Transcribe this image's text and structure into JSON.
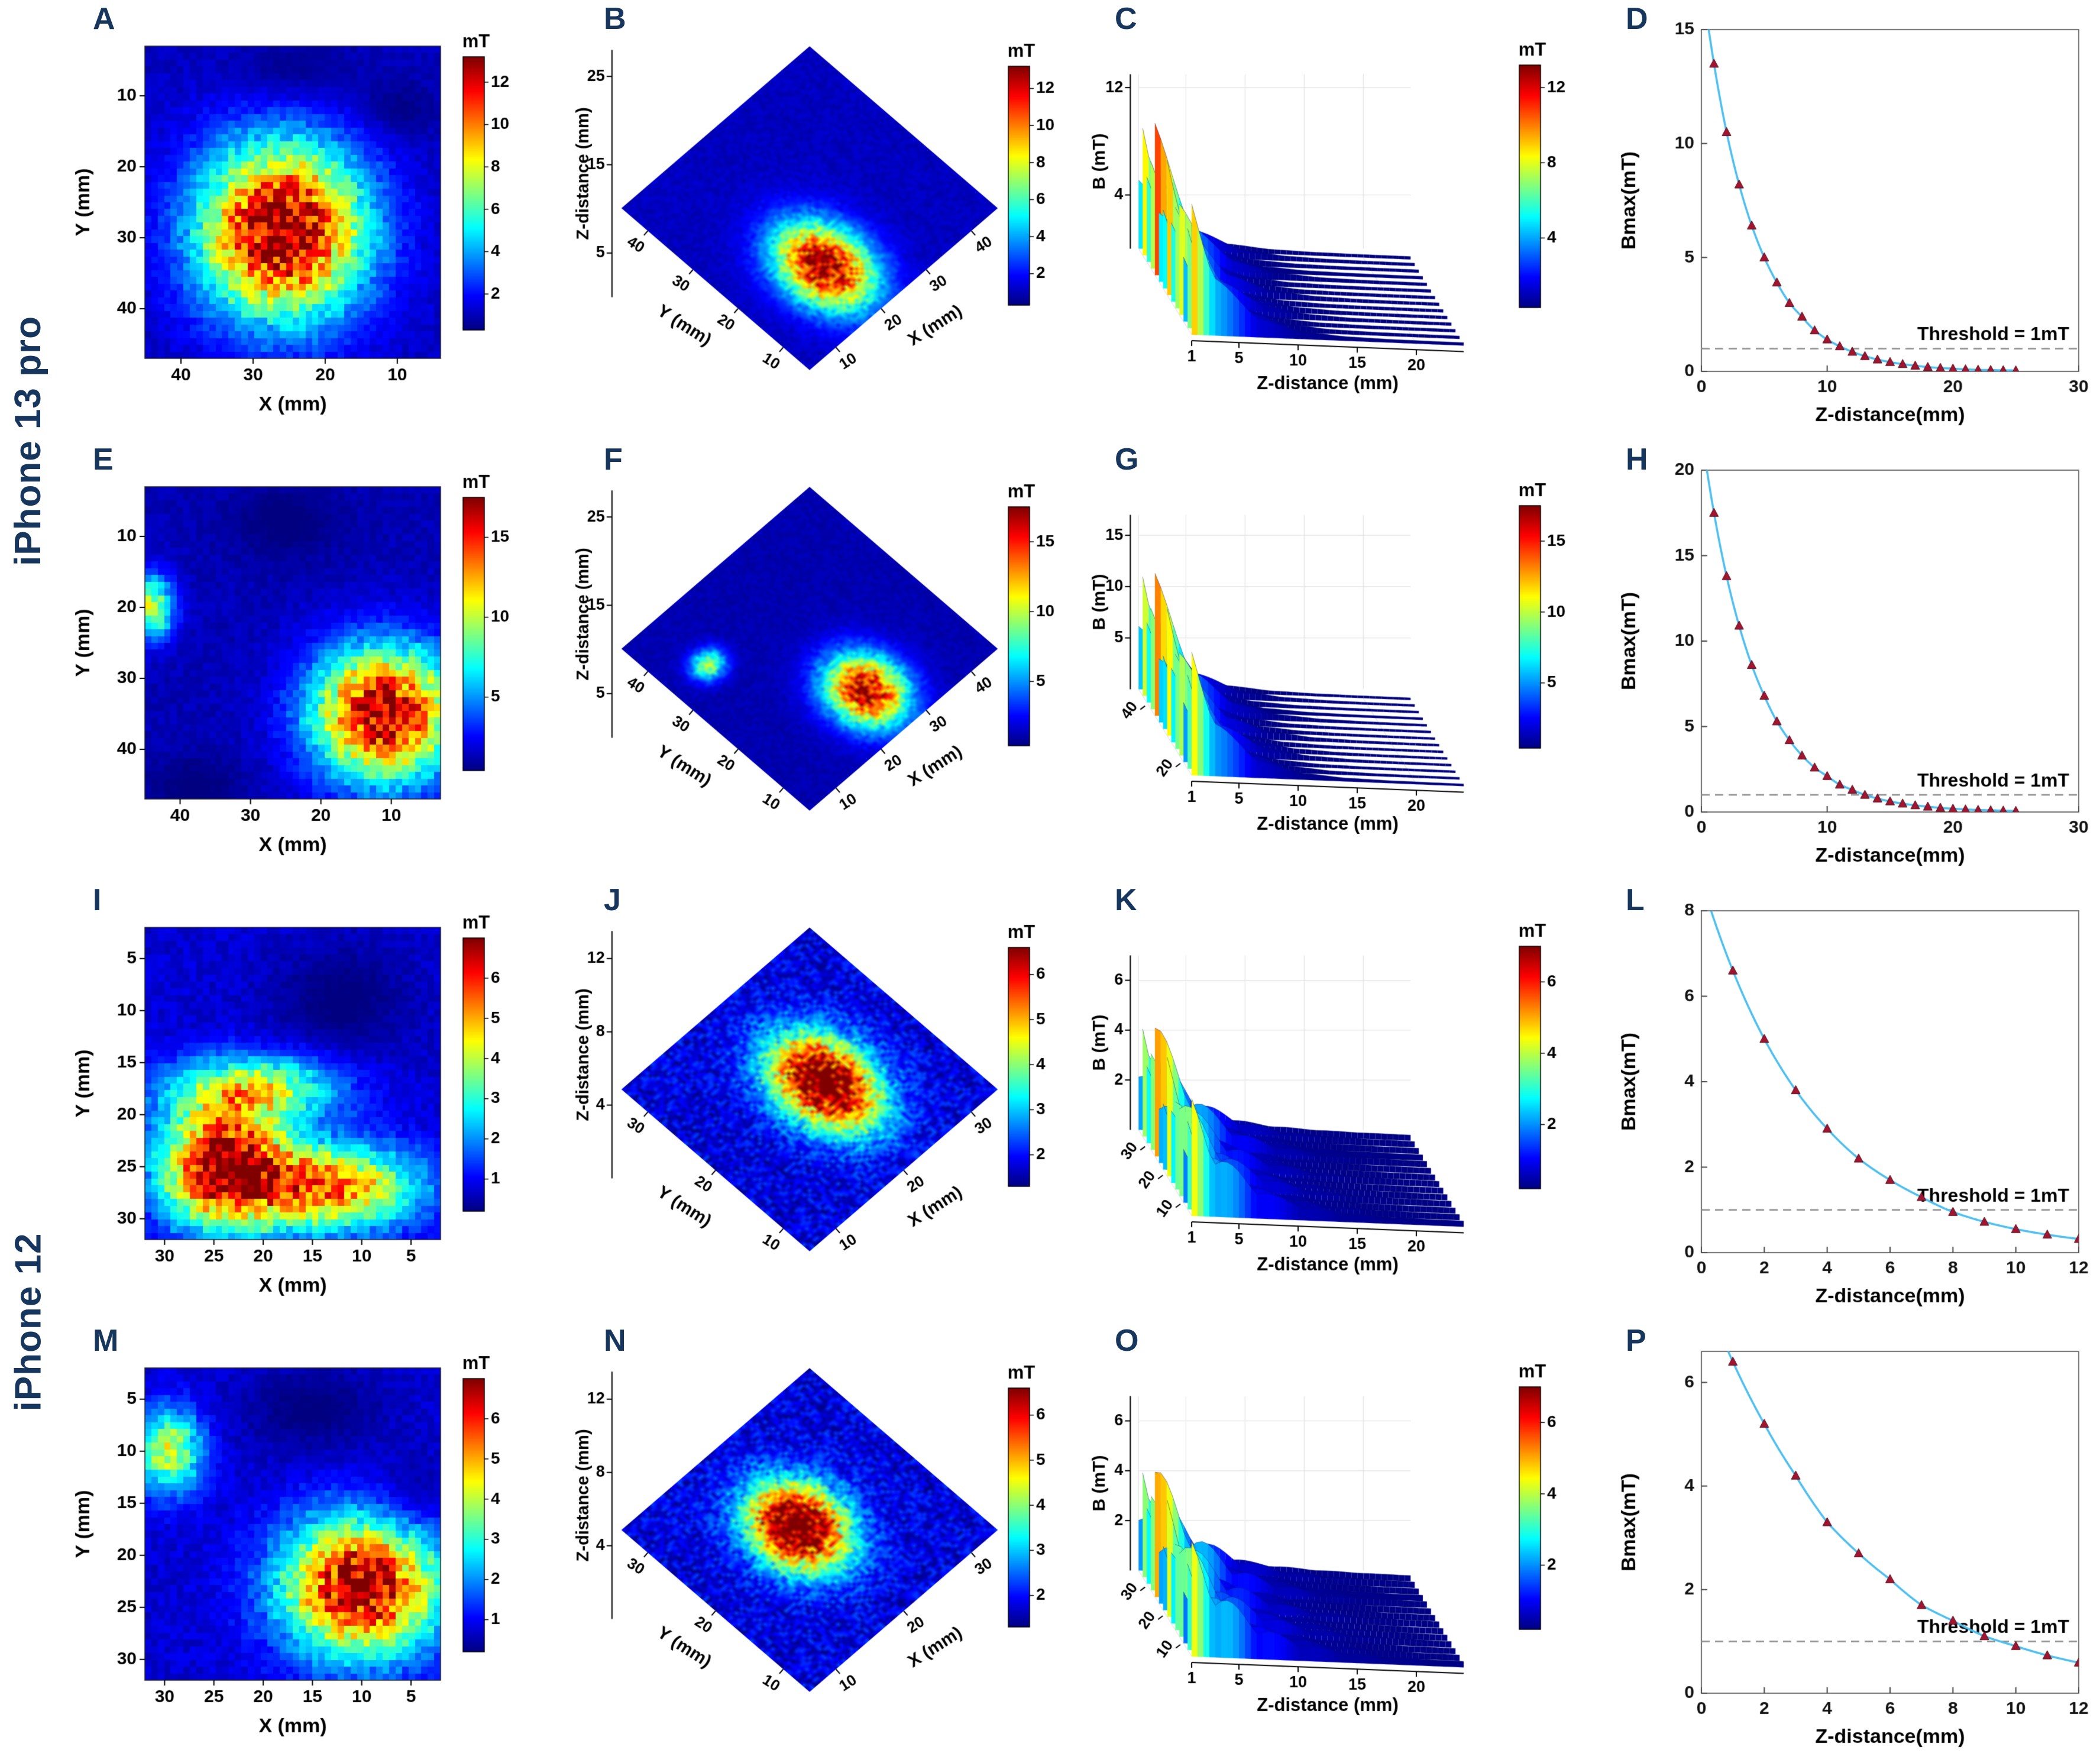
{
  "figure": {
    "groups": [
      {
        "label": "iPhone 13 pro"
      },
      {
        "label": "iPhone 12"
      }
    ]
  },
  "colors": {
    "panel_letter": "#17365d",
    "side_label": "#17365d",
    "line": "#4dbeee",
    "marker": "#a2142f",
    "marker_edge": "#4a0a14",
    "threshold": "#8c8c8c",
    "text": "#000000"
  },
  "chart_data": [
    {
      "panel": "A",
      "group": "iPhone 13 pro",
      "type": "heatmap",
      "xlabel": "X (mm)",
      "ylabel": "Y (mm)",
      "x_ticks": [
        40,
        30,
        20,
        10
      ],
      "x_range": [
        45,
        4
      ],
      "y_ticks": [
        10,
        20,
        30,
        40
      ],
      "y_range": [
        3,
        47
      ],
      "colorbar": {
        "label": "mT",
        "ticks": [
          2,
          4,
          6,
          8,
          10,
          12
        ],
        "vmin": 0.3,
        "vmax": 13.2
      },
      "background_value": 1.1,
      "hotspots": [
        {
          "x": 26,
          "y": 29,
          "sx": 8,
          "sy": 8.5,
          "peak": 12.3
        }
      ],
      "cold_spots": [
        {
          "x": 24,
          "y": 7,
          "sx": 6,
          "sy": 3.5
        },
        {
          "x": 10,
          "y": 12,
          "sx": 4,
          "sy": 3
        }
      ]
    },
    {
      "panel": "B",
      "group": "iPhone 13 pro",
      "type": "map3d",
      "zlabel": "Z-distance (mm)",
      "z_ticks": [
        5,
        15,
        25
      ],
      "z_max": 28,
      "left_axis": {
        "label": "Y (mm)",
        "ticks": [
          40,
          30,
          20,
          10
        ]
      },
      "right_axis": {
        "label": "X (mm)",
        "ticks": [
          10,
          20,
          30,
          40
        ]
      },
      "colorbar": {
        "label": "mT",
        "ticks": [
          2,
          4,
          6,
          8,
          10,
          12
        ],
        "vmin": 0.3,
        "vmax": 13.2
      },
      "background_value": 1.1,
      "hotspots": [
        {
          "u": 0.72,
          "v": 0.64,
          "su": 0.15,
          "sv": 0.11,
          "peak": 12.2
        }
      ]
    },
    {
      "panel": "C",
      "group": "iPhone 13 pro",
      "type": "surface3d",
      "ylabel": "B (mT)",
      "y_ticks": [
        4,
        12
      ],
      "b_max": 13,
      "xlabel": "Z-distance (mm)",
      "x_ticks": [
        1,
        5,
        10,
        15,
        20
      ],
      "z_range": [
        1,
        24
      ],
      "depth_ticks": [],
      "depth_range": null,
      "colorbar": {
        "label": "mT",
        "ticks": [
          4,
          8,
          12
        ],
        "vmin": 0.3,
        "vmax": 13.2
      },
      "peak": 12.5,
      "tau": 3.0,
      "ripple": 0.2
    },
    {
      "panel": "D",
      "group": "iPhone 13 pro",
      "type": "line",
      "ylabel": "Bmax(mT)",
      "xlabel": "Z-distance(mm)",
      "ylim": [
        0,
        15
      ],
      "y_ticks": [
        0,
        5,
        10,
        15
      ],
      "xlim": [
        0,
        30
      ],
      "x_ticks": [
        0,
        10,
        20,
        30
      ],
      "threshold": {
        "value": 1,
        "label": "Threshold = 1mT"
      },
      "x": [
        1,
        2,
        3,
        4,
        5,
        6,
        7,
        8,
        9,
        10,
        11,
        12,
        13,
        14,
        15,
        16,
        17,
        18,
        19,
        20,
        21,
        22,
        23,
        24,
        25
      ],
      "y": [
        13.5,
        10.5,
        8.2,
        6.4,
        5.0,
        3.9,
        3.0,
        2.4,
        1.8,
        1.4,
        1.1,
        0.86,
        0.67,
        0.52,
        0.41,
        0.32,
        0.25,
        0.19,
        0.15,
        0.12,
        0.09,
        0.07,
        0.06,
        0.05,
        0.04
      ]
    },
    {
      "panel": "E",
      "group": "iPhone 13 pro",
      "type": "heatmap",
      "xlabel": "X (mm)",
      "ylabel": "Y (mm)",
      "x_ticks": [
        40,
        30,
        20,
        10
      ],
      "x_range": [
        45,
        3
      ],
      "y_ticks": [
        10,
        20,
        30,
        40
      ],
      "y_range": [
        3,
        47
      ],
      "colorbar": {
        "label": "mT",
        "ticks": [
          5,
          10,
          15
        ],
        "vmin": 0.4,
        "vmax": 17.5
      },
      "background_value": 1.3,
      "hotspots": [
        {
          "x": 11,
          "y": 35,
          "sx": 7,
          "sy": 6.5,
          "peak": 15.8
        },
        {
          "x": 44,
          "y": 20,
          "sx": 2.2,
          "sy": 3,
          "peak": 9
        }
      ],
      "cold_spots": [
        {
          "x": 25,
          "y": 8,
          "sx": 6,
          "sy": 4
        },
        {
          "x": 38,
          "y": 45,
          "sx": 5,
          "sy": 3
        }
      ]
    },
    {
      "panel": "F",
      "group": "iPhone 13 pro",
      "type": "map3d",
      "zlabel": "Z-distance (mm)",
      "z_ticks": [
        5,
        15,
        25
      ],
      "z_max": 28,
      "left_axis": {
        "label": "Y (mm)",
        "ticks": [
          40,
          30,
          20,
          10
        ]
      },
      "right_axis": {
        "label": "X (mm)",
        "ticks": [
          10,
          20,
          30,
          40
        ]
      },
      "colorbar": {
        "label": "mT",
        "ticks": [
          5,
          10,
          15
        ],
        "vmin": 0.4,
        "vmax": 17.5
      },
      "background_value": 1.2,
      "hotspots": [
        {
          "u": 0.78,
          "v": 0.48,
          "su": 0.12,
          "sv": 0.1,
          "peak": 15.6
        },
        {
          "u": 0.28,
          "v": 0.82,
          "su": 0.045,
          "sv": 0.05,
          "peak": 8.5
        }
      ]
    },
    {
      "panel": "G",
      "group": "iPhone 13 pro",
      "type": "surface3d",
      "ylabel": "B (mT)",
      "y_ticks": [
        5,
        10,
        15
      ],
      "b_max": 17,
      "xlabel": "Z-distance (mm)",
      "x_ticks": [
        1,
        5,
        10,
        15,
        20
      ],
      "z_range": [
        1,
        24
      ],
      "depth_ticks": [
        20,
        40
      ],
      "depth_range": [
        15,
        45
      ],
      "colorbar": {
        "label": "mT",
        "ticks": [
          5,
          10,
          15
        ],
        "vmin": 0.4,
        "vmax": 17.5
      },
      "peak": 15.5,
      "tau": 3.0,
      "ripple": 0.22
    },
    {
      "panel": "H",
      "group": "iPhone 13 pro",
      "type": "line",
      "ylabel": "Bmax(mT)",
      "xlabel": "Z-distance(mm)",
      "ylim": [
        0,
        20
      ],
      "y_ticks": [
        0,
        5,
        10,
        15,
        20
      ],
      "xlim": [
        0,
        30
      ],
      "x_ticks": [
        0,
        10,
        20,
        30
      ],
      "threshold": {
        "value": 1,
        "label": "Threshold = 1mT"
      },
      "x": [
        1,
        2,
        3,
        4,
        5,
        6,
        7,
        8,
        9,
        10,
        11,
        12,
        13,
        14,
        15,
        16,
        17,
        18,
        19,
        20,
        21,
        22,
        23,
        24,
        25
      ],
      "y": [
        17.5,
        13.8,
        10.9,
        8.6,
        6.8,
        5.3,
        4.2,
        3.3,
        2.6,
        2.1,
        1.6,
        1.3,
        1.0,
        0.79,
        0.62,
        0.49,
        0.39,
        0.31,
        0.24,
        0.19,
        0.15,
        0.12,
        0.1,
        0.08,
        0.06
      ]
    },
    {
      "panel": "I",
      "group": "iPhone 12",
      "type": "heatmap",
      "xlabel": "X (mm)",
      "ylabel": "Y (mm)",
      "x_ticks": [
        30,
        25,
        20,
        15,
        10,
        5
      ],
      "x_range": [
        32,
        2
      ],
      "y_ticks": [
        5,
        10,
        15,
        20,
        25,
        30
      ],
      "y_range": [
        2,
        32
      ],
      "colorbar": {
        "label": "mT",
        "ticks": [
          1,
          2,
          3,
          4,
          5,
          6
        ],
        "vmin": 0.2,
        "vmax": 7.0
      },
      "background_value": 0.75,
      "hotspots": [
        {
          "x": 24,
          "y": 25,
          "sx": 4.5,
          "sy": 4,
          "peak": 6.1
        },
        {
          "x": 13,
          "y": 27,
          "sx": 6,
          "sy": 2.8,
          "peak": 4.6
        },
        {
          "x": 21,
          "y": 17.5,
          "sx": 6,
          "sy": 2.2,
          "peak": 3.2
        }
      ],
      "cold_spots": [
        {
          "x": 12,
          "y": 9,
          "sx": 5,
          "sy": 4
        }
      ]
    },
    {
      "panel": "J",
      "group": "iPhone 12",
      "type": "map3d",
      "zlabel": "Z-distance (mm)",
      "z_ticks": [
        4,
        8,
        12
      ],
      "z_max": 13.5,
      "left_axis": {
        "label": "Y (mm)",
        "ticks": [
          30,
          20,
          10
        ]
      },
      "right_axis": {
        "label": "X (mm)",
        "ticks": [
          10,
          20,
          30
        ]
      },
      "colorbar": {
        "label": "mT",
        "ticks": [
          2,
          3,
          4,
          5,
          6
        ],
        "vmin": 1.3,
        "vmax": 6.6
      },
      "background_value": 1.8,
      "hotspots": [
        {
          "u": 0.52,
          "v": 0.44,
          "su": 0.17,
          "sv": 0.12,
          "peak": 5.6
        }
      ]
    },
    {
      "panel": "K",
      "group": "iPhone 12",
      "type": "surface3d",
      "ylabel": "B (mT)",
      "y_ticks": [
        2,
        4,
        6
      ],
      "b_max": 7,
      "xlabel": "Z-distance (mm)",
      "x_ticks": [
        1,
        5,
        10,
        15,
        20
      ],
      "z_range": [
        1,
        24
      ],
      "depth_ticks": [
        10,
        20,
        30
      ],
      "depth_range": [
        5,
        35
      ],
      "colorbar": {
        "label": "mT",
        "ticks": [
          2,
          4,
          6
        ],
        "vmin": 0.2,
        "vmax": 7.0
      },
      "peak": 5.9,
      "tau": 4.0,
      "ripple": 0.35
    },
    {
      "panel": "L",
      "group": "iPhone 12",
      "type": "line",
      "ylabel": "Bmax(mT)",
      "xlabel": "Z-distance(mm)",
      "ylim": [
        0,
        8
      ],
      "y_ticks": [
        0,
        2,
        4,
        6,
        8
      ],
      "xlim": [
        0,
        12
      ],
      "x_ticks": [
        0,
        2,
        4,
        6,
        8,
        10,
        12
      ],
      "threshold": {
        "value": 1,
        "label": "Threshold = 1mT"
      },
      "x": [
        1,
        2,
        3,
        4,
        5,
        6,
        7,
        8,
        9,
        10,
        11,
        12
      ],
      "y": [
        6.6,
        5.0,
        3.8,
        2.9,
        2.2,
        1.7,
        1.3,
        0.95,
        0.72,
        0.55,
        0.42,
        0.32
      ]
    },
    {
      "panel": "M",
      "group": "iPhone 12",
      "type": "heatmap",
      "xlabel": "X (mm)",
      "ylabel": "Y (mm)",
      "x_ticks": [
        30,
        25,
        20,
        15,
        10,
        5
      ],
      "x_range": [
        32,
        2
      ],
      "y_ticks": [
        5,
        10,
        15,
        20,
        25,
        30
      ],
      "y_range": [
        2,
        32
      ],
      "colorbar": {
        "label": "mT",
        "ticks": [
          1,
          2,
          3,
          4,
          5,
          6
        ],
        "vmin": 0.2,
        "vmax": 7.0
      },
      "background_value": 0.75,
      "hotspots": [
        {
          "x": 10,
          "y": 23,
          "sx": 5.5,
          "sy": 4.5,
          "peak": 6.2
        },
        {
          "x": 29.5,
          "y": 10,
          "sx": 2.3,
          "sy": 2.8,
          "peak": 3.4
        }
      ],
      "cold_spots": [
        {
          "x": 15,
          "y": 6,
          "sx": 5,
          "sy": 3
        },
        {
          "x": 5,
          "y": 15,
          "sx": 3,
          "sy": 3
        }
      ]
    },
    {
      "panel": "N",
      "group": "iPhone 12",
      "type": "map3d",
      "zlabel": "Z-distance (mm)",
      "z_ticks": [
        4,
        8,
        12
      ],
      "z_max": 13.5,
      "left_axis": {
        "label": "Y (mm)",
        "ticks": [
          30,
          20,
          10
        ]
      },
      "right_axis": {
        "label": "X (mm)",
        "ticks": [
          10,
          20,
          30
        ]
      },
      "colorbar": {
        "label": "mT",
        "ticks": [
          2,
          3,
          4,
          5,
          6
        ],
        "vmin": 1.3,
        "vmax": 6.6
      },
      "background_value": 1.8,
      "hotspots": [
        {
          "u": 0.46,
          "v": 0.52,
          "su": 0.15,
          "sv": 0.12,
          "peak": 5.7
        }
      ]
    },
    {
      "panel": "O",
      "group": "iPhone 12",
      "type": "surface3d",
      "ylabel": "B (mT)",
      "y_ticks": [
        2,
        4,
        6
      ],
      "b_max": 7,
      "xlabel": "Z-distance (mm)",
      "x_ticks": [
        1,
        5,
        10,
        15,
        20
      ],
      "z_range": [
        1,
        24
      ],
      "depth_ticks": [
        10,
        20,
        30
      ],
      "depth_range": [
        5,
        35
      ],
      "colorbar": {
        "label": "mT",
        "ticks": [
          2,
          4,
          6
        ],
        "vmin": 0.2,
        "vmax": 7.0
      },
      "peak": 5.8,
      "tau": 4.4,
      "ripple": 0.38
    },
    {
      "panel": "P",
      "group": "iPhone 12",
      "type": "line",
      "ylabel": "Bmax(mT)",
      "xlabel": "Z-distance(mm)",
      "ylim": [
        0,
        6.6
      ],
      "y_ticks": [
        0,
        2,
        4,
        6
      ],
      "xlim": [
        0,
        12
      ],
      "x_ticks": [
        0,
        2,
        4,
        6,
        8,
        10,
        12
      ],
      "threshold": {
        "value": 1,
        "label": "Threshold = 1mT"
      },
      "x": [
        1,
        2,
        3,
        4,
        5,
        6,
        7,
        8,
        9,
        10,
        11,
        12
      ],
      "y": [
        6.4,
        5.2,
        4.2,
        3.3,
        2.7,
        2.2,
        1.7,
        1.4,
        1.1,
        0.91,
        0.73,
        0.59
      ]
    }
  ]
}
